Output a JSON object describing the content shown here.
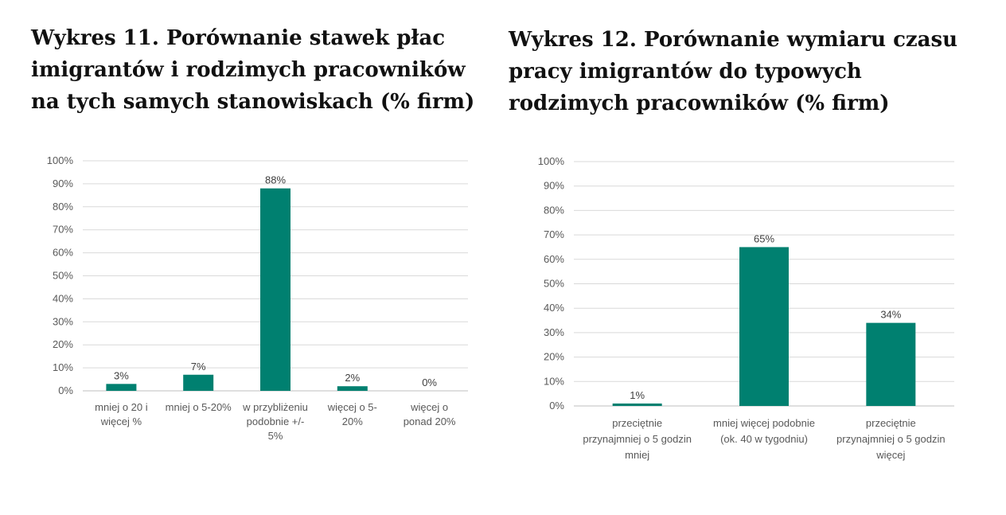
{
  "charts": [
    {
      "title": "Wykres 11. Porównanie stawek płac imigrantów i rodzimych pracowników na tych samych stanowiskach (% firm)",
      "chart_data": {
        "type": "bar",
        "categories": [
          [
            "mniej o 20 i",
            "więcej %"
          ],
          [
            "mniej o 5-20%"
          ],
          [
            "w przybliżeniu",
            "podobnie +/-",
            "5%"
          ],
          [
            "więcej o 5-",
            "20%"
          ],
          [
            "więcej o",
            "ponad 20%"
          ]
        ],
        "values": [
          3,
          7,
          88,
          2,
          0
        ],
        "data_labels": [
          "3%",
          "7%",
          "88%",
          "2%",
          "0%"
        ],
        "y_ticks": [
          "0%",
          "10%",
          "20%",
          "30%",
          "40%",
          "50%",
          "60%",
          "70%",
          "80%",
          "90%",
          "100%"
        ],
        "ylim": [
          0,
          100
        ],
        "grid": true,
        "bar_color": "#008070"
      }
    },
    {
      "title": "Wykres 12. Porównanie wymiaru czasu pracy imigrantów do typowych rodzimych pracowników (% firm)",
      "chart_data": {
        "type": "bar",
        "categories": [
          [
            "przeciętnie",
            "przynajmniej o 5 godzin",
            "mniej"
          ],
          [
            "mniej więcej podobnie",
            "(ok. 40 w tygodniu)"
          ],
          [
            "przeciętnie",
            "przynajmniej o 5 godzin",
            "więcej"
          ]
        ],
        "values": [
          1,
          65,
          34
        ],
        "data_labels": [
          "1%",
          "65%",
          "34%"
        ],
        "y_ticks": [
          "0%",
          "10%",
          "20%",
          "30%",
          "40%",
          "50%",
          "60%",
          "70%",
          "80%",
          "90%",
          "100%"
        ],
        "ylim": [
          0,
          100
        ],
        "grid": true,
        "bar_color": "#008070"
      }
    }
  ]
}
